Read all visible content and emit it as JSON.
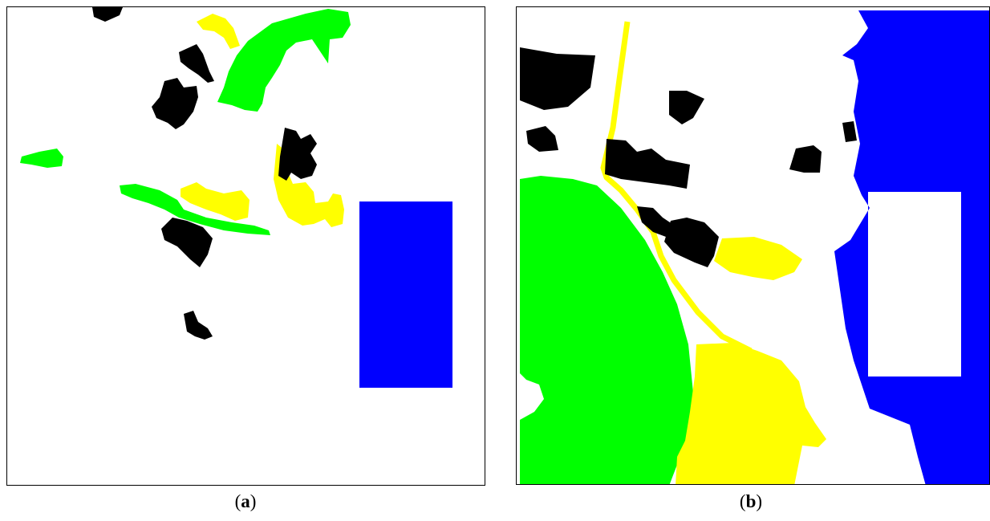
{
  "figure": {
    "panels": [
      {
        "caption_open": "(",
        "caption_letter": "a",
        "caption_close": ")"
      },
      {
        "caption_open": "(",
        "caption_letter": "b",
        "caption_close": ")"
      }
    ]
  },
  "legend_colors": {
    "built_up": "#000000",
    "vegetation": "#00ff00",
    "cultivated": "#ffff00",
    "water": "#0000ff",
    "background": "#ffffff"
  }
}
